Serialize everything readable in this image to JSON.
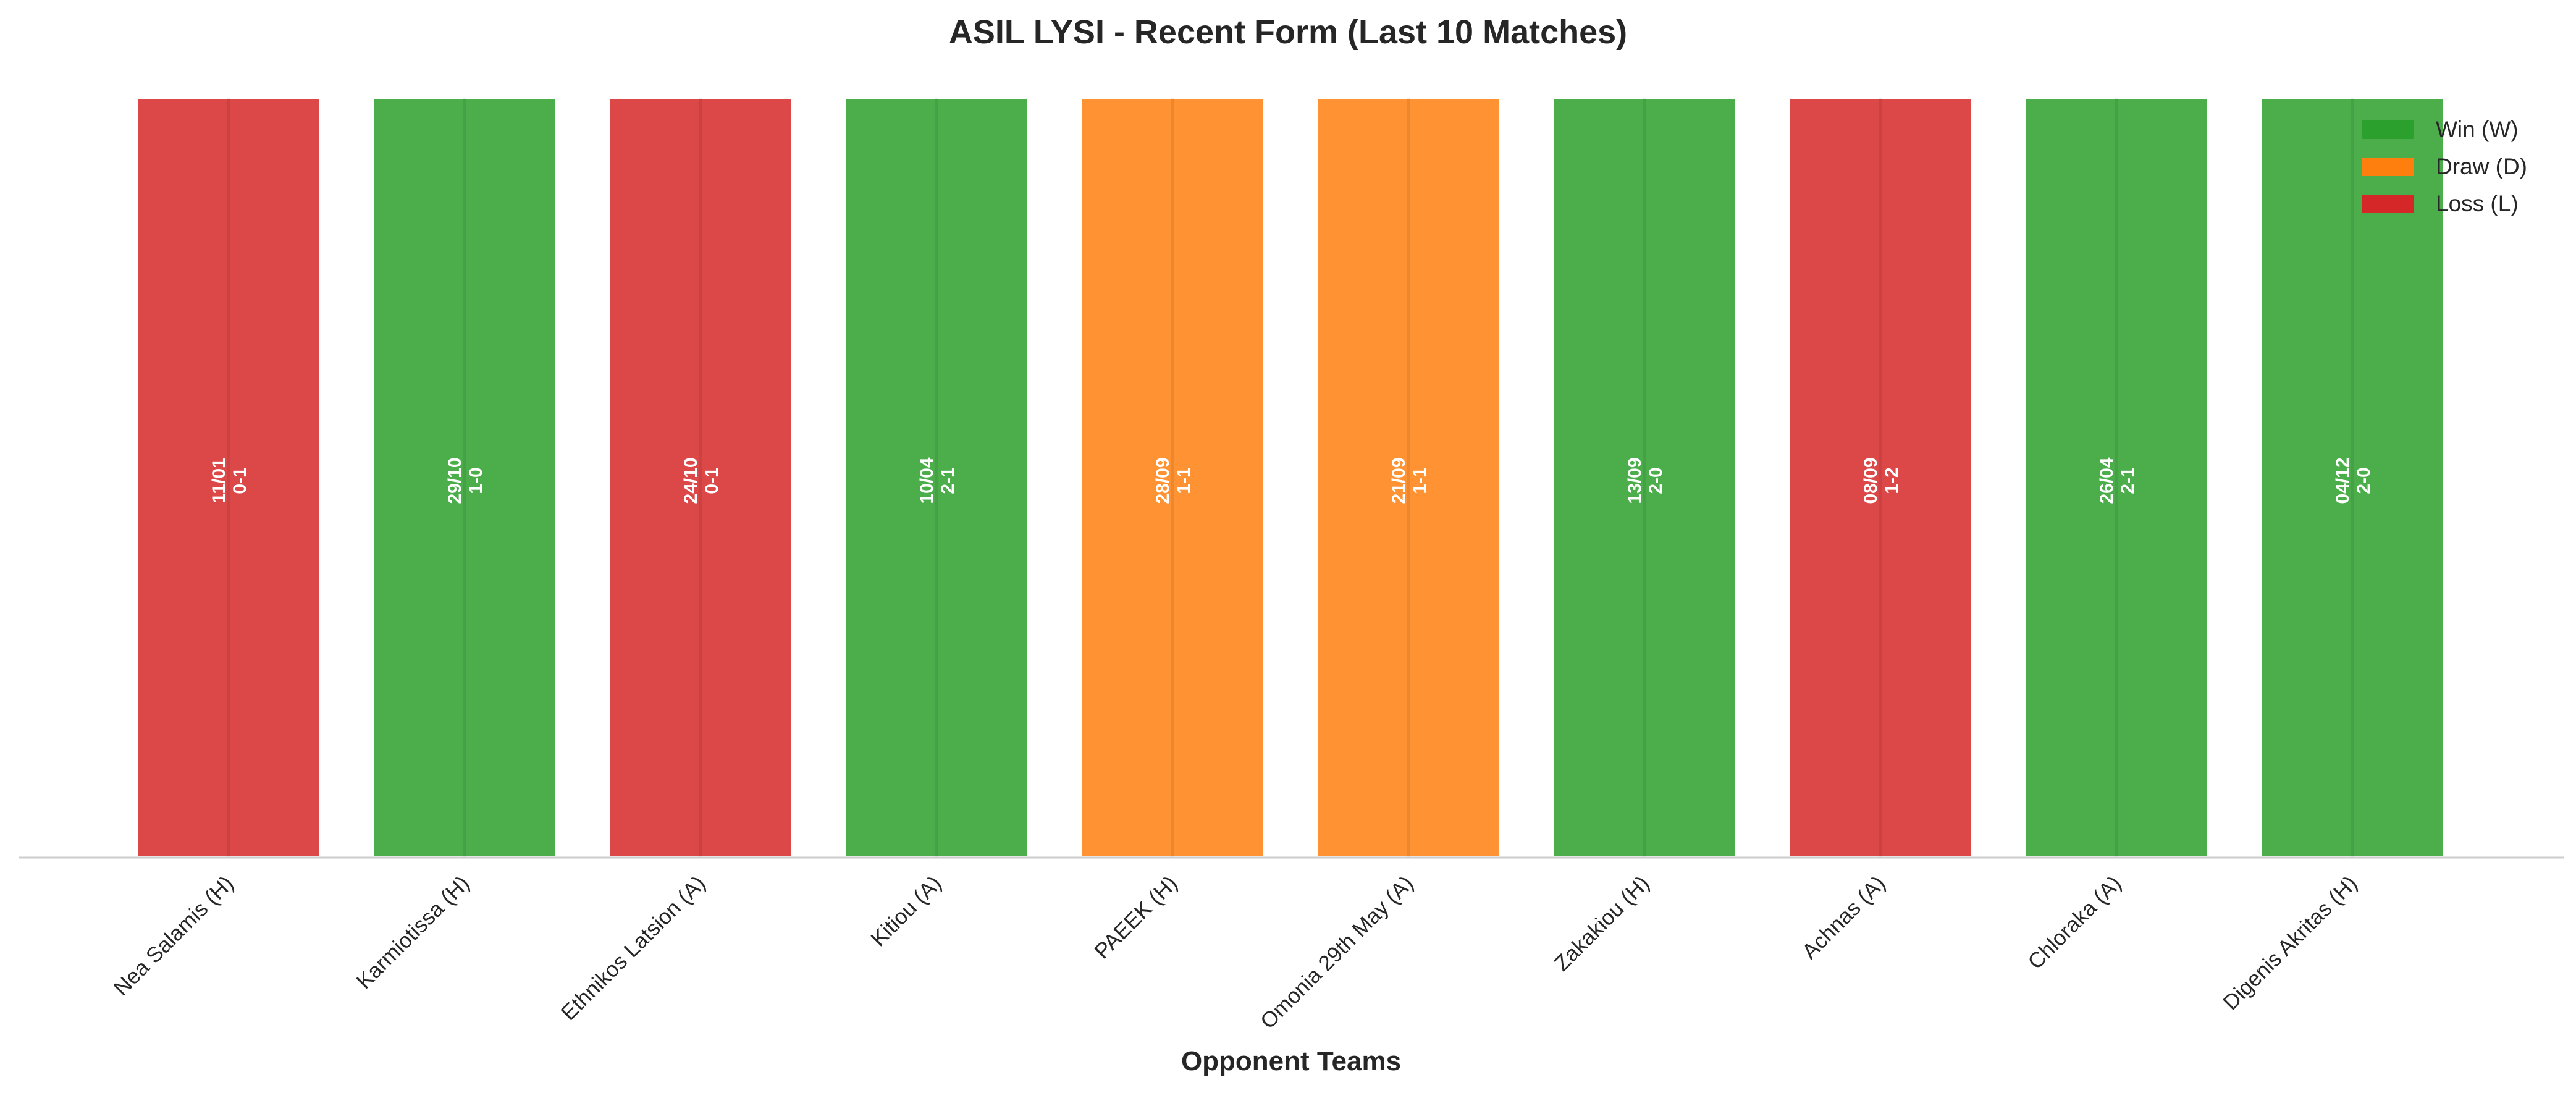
{
  "chart_data": {
    "type": "bar",
    "title": "ASIL LYSI - Recent Form (Last 10 Matches)",
    "xlabel": "Opponent Teams",
    "ylabel": "",
    "categories": [
      "Nea Salamis (H)",
      "Karmiotissa (H)",
      "Ethnikos Latsion (A)",
      "Kitiou (A)",
      "PAEEK (H)",
      "Omonia 29th May (A)",
      "Zakakiou (H)",
      "Achnas (A)",
      "Chloraka (A)",
      "Digenis Akritas (H)"
    ],
    "values": [
      1,
      1,
      1,
      1,
      1,
      1,
      1,
      1,
      1,
      1
    ],
    "results": [
      "L",
      "W",
      "L",
      "W",
      "D",
      "D",
      "W",
      "L",
      "W",
      "W"
    ],
    "bar_labels": [
      [
        "11/01",
        "0-1"
      ],
      [
        "29/10",
        "1-0"
      ],
      [
        "24/10",
        "0-1"
      ],
      [
        "10/04",
        "2-1"
      ],
      [
        "28/09",
        "1-1"
      ],
      [
        "21/09",
        "1-1"
      ],
      [
        "13/09",
        "2-0"
      ],
      [
        "08/09",
        "1-2"
      ],
      [
        "26/04",
        "2-1"
      ],
      [
        "04/12",
        "2-0"
      ]
    ],
    "ylim": [
      0,
      1
    ],
    "grid": false,
    "legend": {
      "placement": "top-right",
      "entries": [
        {
          "key": "W",
          "label": "Win (W)",
          "color": "#2ca02c"
        },
        {
          "key": "D",
          "label": "Draw (D)",
          "color": "#ff7f0e"
        },
        {
          "key": "L",
          "label": "Loss (L)",
          "color": "#d62728"
        }
      ]
    }
  }
}
